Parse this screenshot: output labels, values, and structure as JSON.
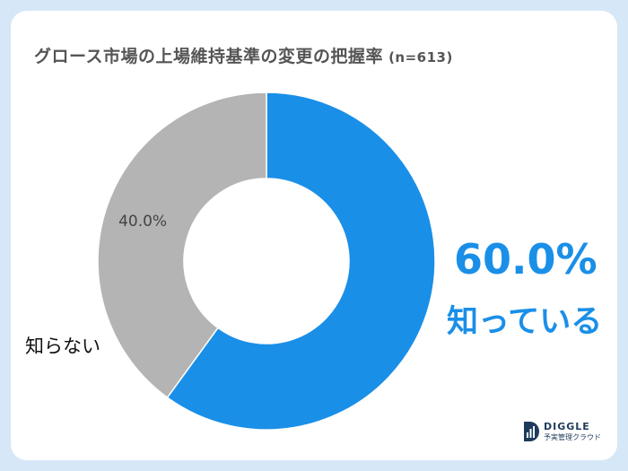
{
  "header": {
    "title": "グロース市場の上場維持基準の変更の把握率",
    "sample_size": "(n=613)"
  },
  "chart_data": {
    "type": "pie",
    "donut": true,
    "title": "グロース市場の上場維持基準の変更の把握率",
    "slices": [
      {
        "label": "知っている",
        "value": 60.0,
        "value_label": "60.0%",
        "color": "#1a8fe8"
      },
      {
        "label": "知らない",
        "value": 40.0,
        "value_label": "40.0%",
        "color": "#b4b4b4"
      }
    ]
  },
  "logo": {
    "name": "DIGGLE",
    "tagline": "予実管理クラウド",
    "color": "#1f3b5c"
  }
}
